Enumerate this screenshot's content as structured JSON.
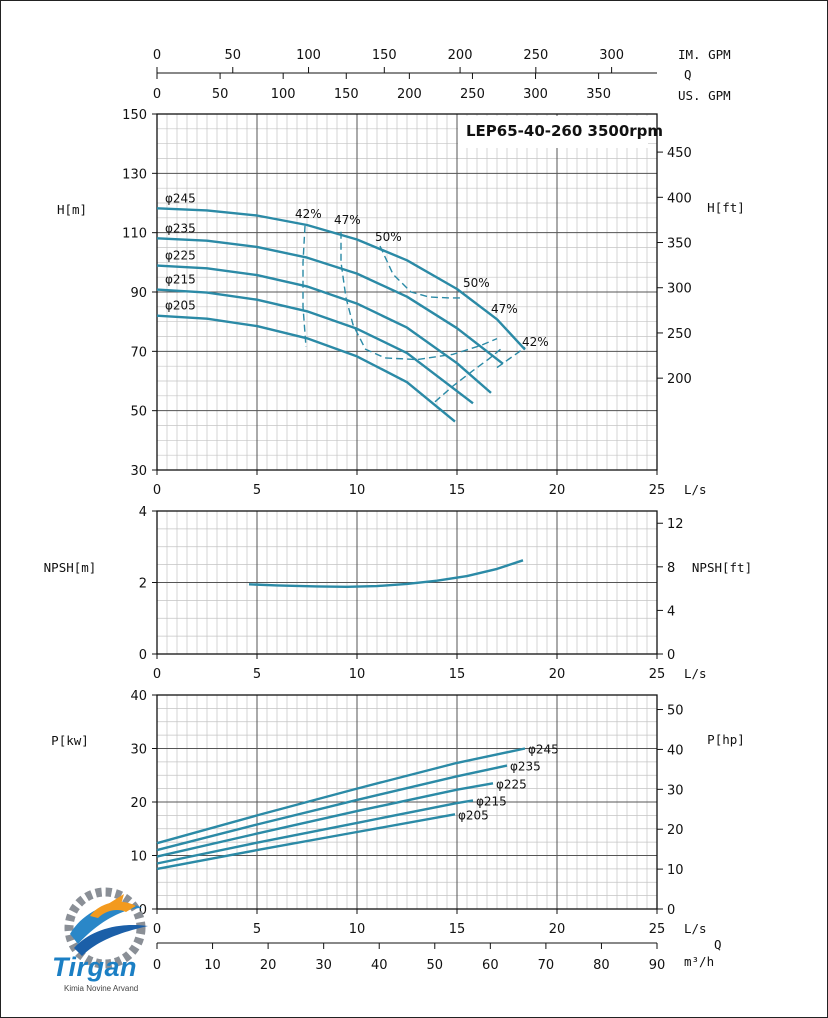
{
  "chart_data": [
    {
      "type": "line",
      "title": "LEP65-40-260 3500rpm",
      "top_axes": [
        {
          "label": "IM. GPM",
          "ticks": [
            "0",
            "50",
            "100",
            "150",
            "200",
            "250",
            "300"
          ],
          "values": [
            0,
            50,
            100,
            150,
            200,
            250,
            300
          ]
        },
        {
          "label": "Q",
          "ticks": [],
          "values": []
        },
        {
          "label": "US. GPM",
          "ticks": [
            "0",
            "50",
            "100",
            "150",
            "200",
            "250",
            "300",
            "350"
          ],
          "values": [
            0,
            50,
            100,
            150,
            200,
            250,
            300,
            350
          ]
        }
      ],
      "xlabel": "L/s",
      "xlim": [
        0,
        25
      ],
      "xticks": [
        "0",
        "5",
        "10",
        "15",
        "20",
        "25"
      ],
      "ylabel": "H[m]",
      "ylim": [
        30,
        150
      ],
      "yticks": [
        "30",
        "50",
        "70",
        "90",
        "110",
        "130",
        "150"
      ],
      "y2label": "H[ft]",
      "y2ticks": [
        "200",
        "250",
        "300",
        "350",
        "400",
        "450"
      ],
      "y2values": [
        200,
        250,
        300,
        350,
        400,
        450
      ],
      "grid": true,
      "series": [
        {
          "name": "φ245",
          "x": [
            0,
            2.5,
            5,
            7.5,
            10,
            12.5,
            15,
            17,
            18.4
          ],
          "y": [
            118.2,
            117.5,
            115.8,
            112.6,
            107.7,
            100.7,
            91,
            80.8,
            70.6
          ]
        },
        {
          "name": "φ235",
          "x": [
            0,
            2.5,
            5,
            7.5,
            10,
            12.5,
            15,
            17.3
          ],
          "y": [
            108.1,
            107.3,
            105.2,
            101.6,
            96.2,
            88.4,
            77.8,
            65.8
          ]
        },
        {
          "name": "φ225",
          "x": [
            0,
            2.5,
            5,
            7.5,
            10,
            12.5,
            15,
            16.7
          ],
          "y": [
            98.9,
            98,
            95.7,
            91.9,
            86.1,
            78,
            66,
            56
          ]
        },
        {
          "name": "φ215",
          "x": [
            0,
            2.5,
            5,
            7.5,
            10,
            12.5,
            15.8
          ],
          "y": [
            90.8,
            89.8,
            87.4,
            83.5,
            77.6,
            69.4,
            52.5
          ]
        },
        {
          "name": "φ205",
          "x": [
            0,
            2.5,
            5,
            7.5,
            10,
            12.5,
            14.9
          ],
          "y": [
            82,
            81,
            78.5,
            74.4,
            68.3,
            59.6,
            46.3
          ]
        }
      ],
      "efficiency_lines": [
        {
          "name": "42%",
          "x": [
            7.4,
            7.3,
            7.3,
            7.45
          ],
          "y": [
            112.3,
            100,
            85,
            71.5
          ]
        },
        {
          "name": "47%",
          "x": [
            9.2,
            9.2,
            9.45,
            9.8,
            10.4
          ],
          "y": [
            110.3,
            100,
            88,
            79,
            71
          ]
        },
        {
          "name": "50%",
          "x": [
            11.15,
            11.8,
            12.7,
            13.6,
            14.6,
            15.2
          ],
          "y": [
            105.5,
            96,
            90,
            88.3,
            88,
            88
          ]
        },
        {
          "name": "50%",
          "x": [
            10.4,
            11.4,
            13,
            14.8,
            16.2,
            17
          ],
          "y": [
            70.8,
            67.8,
            67.2,
            69,
            72,
            74.3
          ]
        },
        {
          "name": "47%",
          "x": [
            13.9,
            14.8,
            15.8,
            16.6,
            17.3
          ],
          "y": [
            53,
            58.3,
            63.5,
            67.5,
            71.4
          ]
        },
        {
          "name": "42%",
          "x": [
            17,
            17.6,
            18.1,
            18.4
          ],
          "y": [
            64.5,
            67.4,
            69.8,
            71.4
          ]
        }
      ],
      "annotations": [
        "42%",
        "47%",
        "50%",
        "50%",
        "47%",
        "42%"
      ]
    },
    {
      "type": "line",
      "xlabel": "L/s",
      "xlim": [
        0,
        25
      ],
      "xticks": [
        "0",
        "5",
        "10",
        "15",
        "20",
        "25"
      ],
      "ylabel": "NPSH[m]",
      "ylim": [
        0,
        4
      ],
      "yticks": [
        "0",
        "2",
        "4"
      ],
      "y2label": "NPSH[ft]",
      "y2ticks": [
        "0",
        "4",
        "8",
        "12"
      ],
      "y2values": [
        0,
        4,
        8,
        12
      ],
      "grid": true,
      "series": [
        {
          "name": "",
          "x": [
            4.6,
            6,
            8,
            9.5,
            11,
            12.5,
            14,
            15.5,
            17,
            18.3
          ],
          "y": [
            1.95,
            1.92,
            1.89,
            1.88,
            1.9,
            1.96,
            2.05,
            2.18,
            2.38,
            2.62
          ]
        }
      ]
    },
    {
      "type": "line",
      "xlabel": "L/s",
      "xlim": [
        0,
        25
      ],
      "xticks": [
        "0",
        "5",
        "10",
        "15",
        "20",
        "25"
      ],
      "ylabel": "P[kw]",
      "ylim": [
        0,
        40
      ],
      "yticks": [
        "0",
        "10",
        "20",
        "30",
        "40"
      ],
      "y2label": "P[hp]",
      "y2ticks": [
        "0",
        "10",
        "20",
        "30",
        "40",
        "50"
      ],
      "y2values": [
        0,
        10,
        20,
        30,
        40,
        50
      ],
      "bottom_axis": {
        "label": "Q",
        "unit": "m³/h",
        "ticks": [
          "0",
          "10",
          "20",
          "30",
          "40",
          "50",
          "60",
          "70",
          "80",
          "90"
        ],
        "values": [
          0,
          10,
          20,
          30,
          40,
          50,
          60,
          70,
          80,
          90
        ]
      },
      "grid": true,
      "series": [
        {
          "name": "φ245",
          "x": [
            0,
            5,
            10,
            15,
            18.4
          ],
          "y": [
            12.3,
            17.5,
            22.5,
            27.3,
            30
          ]
        },
        {
          "name": "φ235",
          "x": [
            0,
            5,
            10,
            15,
            17.5
          ],
          "y": [
            11,
            15.8,
            20.4,
            24.8,
            26.8
          ]
        },
        {
          "name": "φ225",
          "x": [
            0,
            5,
            10,
            15,
            16.8
          ],
          "y": [
            9.8,
            14.1,
            18.3,
            22.3,
            23.5
          ]
        },
        {
          "name": "φ215",
          "x": [
            0,
            5,
            10,
            15,
            15.8
          ],
          "y": [
            8.5,
            12.4,
            16.1,
            19.8,
            20.3
          ]
        },
        {
          "name": "φ205",
          "x": [
            0,
            5,
            10,
            14.9
          ],
          "y": [
            7.5,
            11,
            14.4,
            17.7
          ]
        }
      ]
    }
  ],
  "logo": {
    "name": "Tirgan",
    "subtitle": "Kimia Novine Arvand"
  },
  "colors": {
    "curve": "#2b8aa6",
    "grid_major": "#555555",
    "grid_minor": "#c4c4c4",
    "axis": "#111111"
  }
}
